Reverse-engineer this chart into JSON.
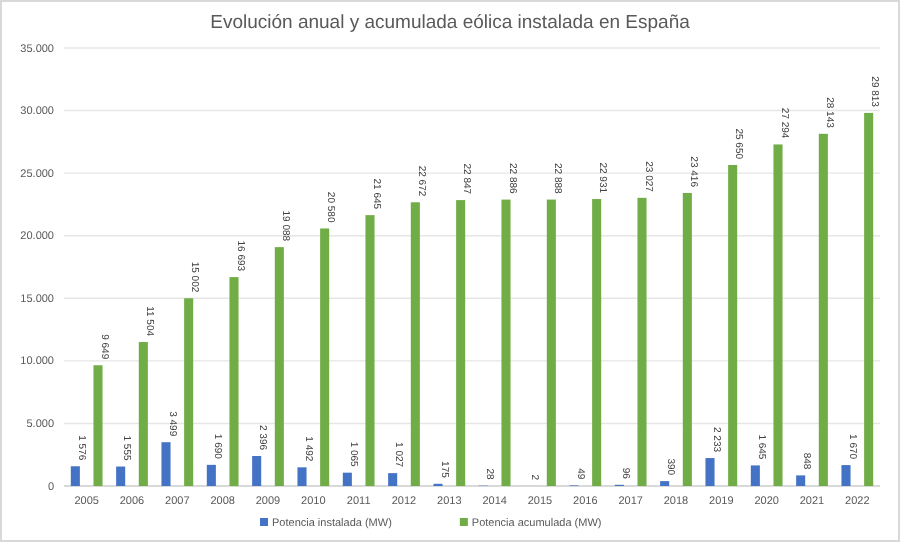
{
  "chart_data": {
    "type": "bar",
    "title": "Evolución anual y acumulada eólica instalada en España",
    "categories": [
      "2005",
      "2006",
      "2007",
      "2008",
      "2009",
      "2010",
      "2011",
      "2012",
      "2013",
      "2014",
      "2015",
      "2016",
      "2017",
      "2018",
      "2019",
      "2020",
      "2021",
      "2022"
    ],
    "series": [
      {
        "name": "Potencia instalada (MW)",
        "color": "#4472c4",
        "values": [
          1576,
          1555,
          3499,
          1690,
          2396,
          1492,
          1065,
          1027,
          175,
          28,
          2,
          49,
          96,
          390,
          2233,
          1645,
          848,
          1670
        ],
        "value_labels": [
          "1 576",
          "1 555",
          "3 499",
          "1 690",
          "2 396",
          "1 492",
          "1 065",
          "1 027",
          "175",
          "28",
          "2",
          "49",
          "96",
          "390",
          "2 233",
          "1 645",
          "848",
          "1 670"
        ]
      },
      {
        "name": "Potencia acumulada (MW)",
        "color": "#70ad47",
        "values": [
          9649,
          11504,
          15002,
          16693,
          19088,
          20580,
          21645,
          22672,
          22847,
          22886,
          22888,
          22931,
          23027,
          23416,
          25650,
          27294,
          28143,
          29813
        ],
        "value_labels": [
          "9 649",
          "11 504",
          "15 002",
          "16 693",
          "19 088",
          "20 580",
          "21 645",
          "22 672",
          "22 847",
          "22 886",
          "22 888",
          "22 931",
          "23 027",
          "23 416",
          "25 650",
          "27 294",
          "28 143",
          "29 813"
        ]
      }
    ],
    "ylim": [
      0,
      35000
    ],
    "yticks": [
      {
        "value": 0,
        "label": "0"
      },
      {
        "value": 5000,
        "label": "5.000"
      },
      {
        "value": 10000,
        "label": "10.000"
      },
      {
        "value": 15000,
        "label": "15.000"
      },
      {
        "value": 20000,
        "label": "20.000"
      },
      {
        "value": 25000,
        "label": "25.000"
      },
      {
        "value": 30000,
        "label": "30.000"
      },
      {
        "value": 35000,
        "label": "35.000"
      }
    ],
    "grid": "y",
    "legend": "bottom"
  }
}
